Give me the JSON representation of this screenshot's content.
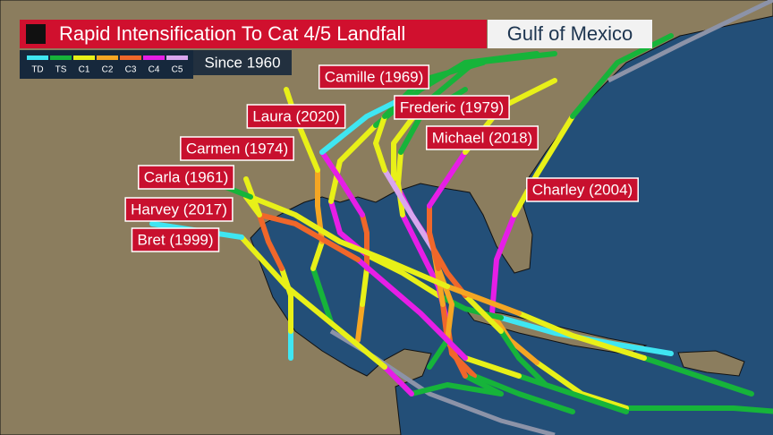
{
  "header": {
    "title": "Rapid Intensification To Cat 4/5 Landfall",
    "region": "Gulf of Mexico",
    "subtitle": "Since 1960"
  },
  "legend": [
    {
      "label": "TD",
      "color": "#3fe6f2"
    },
    {
      "label": "TS",
      "color": "#16b43a"
    },
    {
      "label": "C1",
      "color": "#e8f018"
    },
    {
      "label": "C2",
      "color": "#f5a623"
    },
    {
      "label": "C3",
      "color": "#f0672a"
    },
    {
      "label": "C4",
      "color": "#e61ee6"
    },
    {
      "label": "C5",
      "color": "#d9a6ee"
    }
  ],
  "storms": [
    "Camille (1969)",
    "Laura (2020)",
    "Frederic (1979)",
    "Carmen (1974)",
    "Michael (2018)",
    "Carla (1961)",
    "Charley (2004)",
    "Harvey (2017)",
    "Bret (1999)"
  ]
}
